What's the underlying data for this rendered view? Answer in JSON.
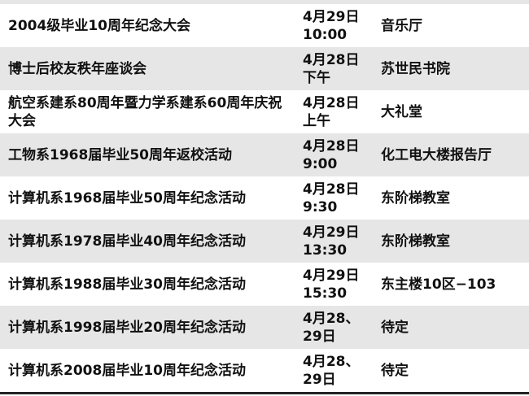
{
  "rows": [
    {
      "event": "2004级毕业10周年纪念大会",
      "time": "4月29日\n10:00",
      "place": "音乐厅"
    },
    {
      "event": "博士后校友秩年座谈会",
      "time": "4月28日\n下午",
      "place": "苏世民书院"
    },
    {
      "event": "航空系建系80周年暨力学系建系60周年庆祝大会",
      "time": "4月28日\n上午",
      "place": "大礼堂"
    },
    {
      "event": "工物系1968届毕业50周年返校活动",
      "time": "4月28日\n9:00",
      "place": "化工电大楼报告厅"
    },
    {
      "event": "计算机系1968届毕业50周年纪念活动",
      "time": "4月28日\n9:30",
      "place": "东阶梯教室"
    },
    {
      "event": "计算机系1978届毕业40周年纪念活动",
      "time": "4月29日\n13:30",
      "place": "东阶梯教室"
    },
    {
      "event": "计算机系1988届毕业30周年纪念活动",
      "time": "4月29日\n15:30",
      "place": "东主楼10区−103"
    },
    {
      "event": "计算机系1998届毕业20周年纪念活动",
      "time": "4月28、\n29日",
      "place": "待定"
    },
    {
      "event": "计算机系2008届毕业10周年纪念活动",
      "time": "4月28、\n29日",
      "place": "待定"
    }
  ]
}
